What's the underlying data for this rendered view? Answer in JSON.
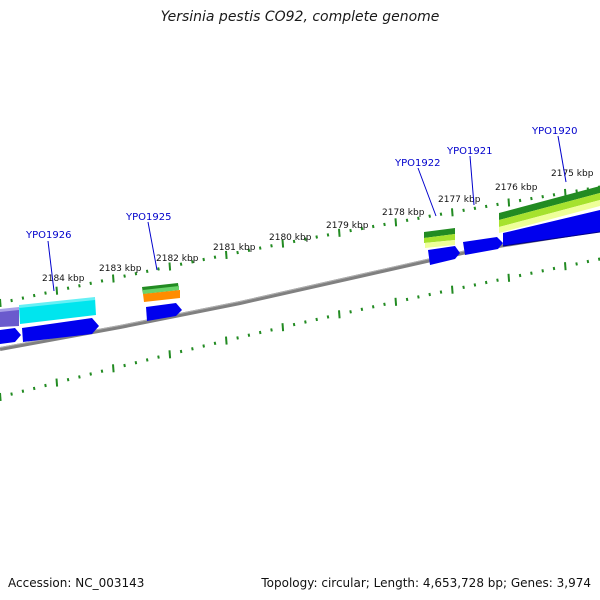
{
  "title": "Yersinia pestis CO92, complete genome",
  "footer": {
    "accession": "Accession: NC_003143",
    "summary": "Topology: circular; Length: 4,653,728 bp; Genes: 3,974"
  },
  "scale_labels": [
    "2175 kbp",
    "2176 kbp",
    "2177 kbp",
    "2178 kbp",
    "2179 kbp",
    "2180 kbp",
    "2181 kbp",
    "2182 kbp",
    "2183 kbp",
    "2184 kbp"
  ],
  "gene_labels": [
    "YPO1920",
    "YPO1921",
    "YPO1922",
    "YPO1925",
    "YPO1926"
  ],
  "colors": {
    "backbone": "#808080",
    "tick": "#228b22",
    "gene_label": "#0000cc",
    "cds": "#0000ee",
    "cyan": "#00e5ee",
    "purple": "#6a5acd",
    "dark_green": "#228b22",
    "light_green": "#a6e22e",
    "pale_yellow": "#eeff99",
    "orange": "#ff8c00"
  }
}
